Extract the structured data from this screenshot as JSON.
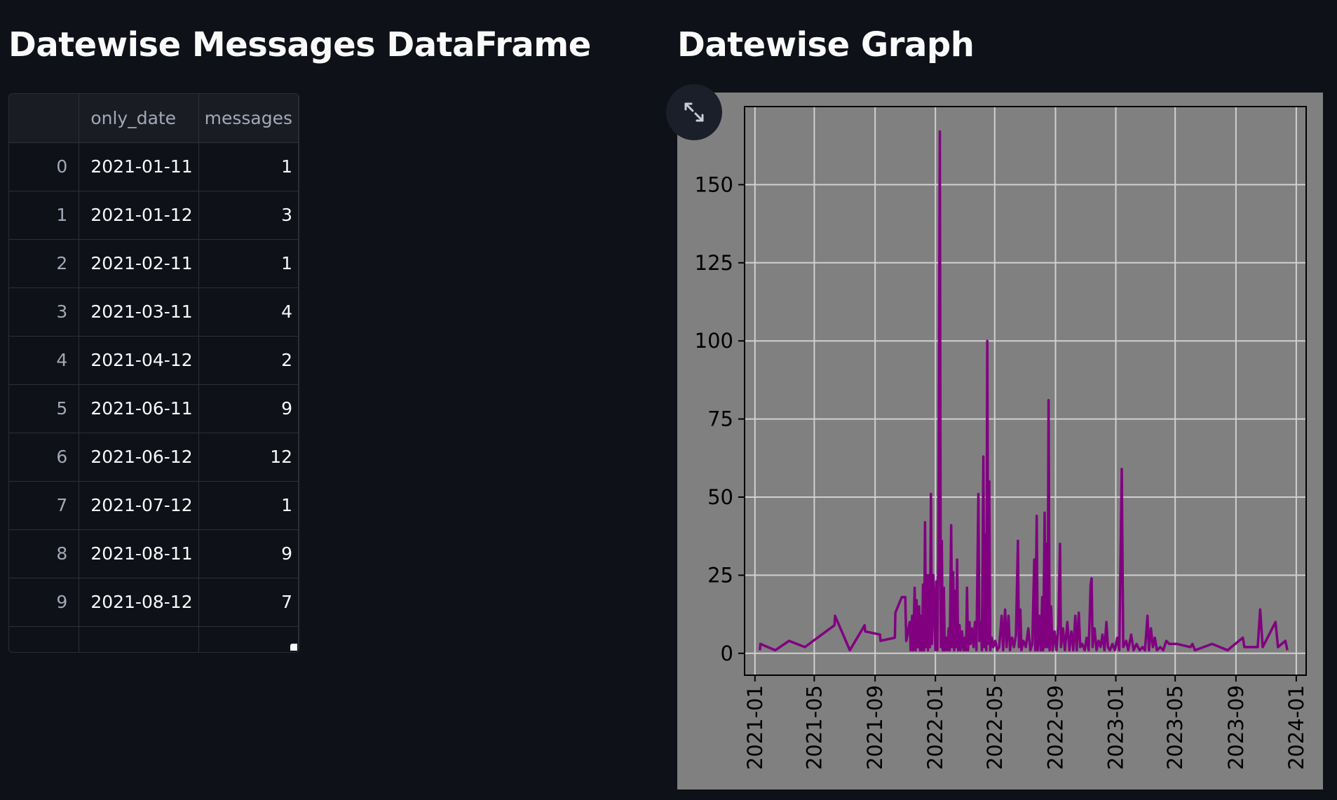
{
  "left_panel": {
    "title": "Datewise Messages DataFrame",
    "dataframe": {
      "columns": [
        "",
        "only_date",
        "messages"
      ],
      "rows": [
        {
          "index": "0",
          "only_date": "2021-01-11",
          "messages": "1"
        },
        {
          "index": "1",
          "only_date": "2021-01-12",
          "messages": "3"
        },
        {
          "index": "2",
          "only_date": "2021-02-11",
          "messages": "1"
        },
        {
          "index": "3",
          "only_date": "2021-03-11",
          "messages": "4"
        },
        {
          "index": "4",
          "only_date": "2021-04-12",
          "messages": "2"
        },
        {
          "index": "5",
          "only_date": "2021-06-11",
          "messages": "9"
        },
        {
          "index": "6",
          "only_date": "2021-06-12",
          "messages": "12"
        },
        {
          "index": "7",
          "only_date": "2021-07-12",
          "messages": "1"
        },
        {
          "index": "8",
          "only_date": "2021-08-11",
          "messages": "9"
        },
        {
          "index": "9",
          "only_date": "2021-08-12",
          "messages": "7"
        }
      ]
    }
  },
  "right_panel": {
    "title": "Datewise Graph",
    "expand_icon": "expand-arrows-icon"
  },
  "colors": {
    "background": "#0e1117",
    "plot_background": "#808080",
    "line": "#800080",
    "grid": "#d0d0d0"
  },
  "chart_data": {
    "type": "line",
    "title": "",
    "xlabel": "",
    "ylabel": "",
    "x_ticks": [
      "2021-01",
      "2021-05",
      "2021-09",
      "2022-01",
      "2022-05",
      "2022-09",
      "2023-01",
      "2023-05",
      "2023-09",
      "2024-01"
    ],
    "y_ticks": [
      "0",
      "25",
      "50",
      "75",
      "100",
      "125",
      "150"
    ],
    "xlim": [
      "2020-12-11",
      "2024-01-21"
    ],
    "ylim": [
      -7,
      175
    ],
    "grid": true,
    "line_color": "#800080",
    "series": [
      {
        "points": [
          [
            "2021-01-11",
            1
          ],
          [
            "2021-01-12",
            3
          ],
          [
            "2021-02-11",
            1
          ],
          [
            "2021-03-11",
            4
          ],
          [
            "2021-04-12",
            2
          ],
          [
            "2021-06-11",
            9
          ],
          [
            "2021-06-12",
            12
          ],
          [
            "2021-07-12",
            1
          ],
          [
            "2021-08-11",
            9
          ],
          [
            "2021-08-12",
            7
          ],
          [
            "2021-09-11",
            6
          ],
          [
            "2021-09-12",
            4
          ],
          [
            "2021-10-11",
            5
          ],
          [
            "2021-10-12",
            13
          ],
          [
            "2021-10-25",
            18
          ],
          [
            "2021-11-01",
            18
          ],
          [
            "2021-11-03",
            4
          ],
          [
            "2021-11-10",
            10
          ],
          [
            "2021-11-12",
            1
          ],
          [
            "2021-11-15",
            12
          ],
          [
            "2021-11-17",
            1
          ],
          [
            "2021-11-20",
            21
          ],
          [
            "2021-11-22",
            1
          ],
          [
            "2021-11-24",
            17
          ],
          [
            "2021-11-27",
            2
          ],
          [
            "2021-11-29",
            15
          ],
          [
            "2021-12-01",
            1
          ],
          [
            "2021-12-03",
            12
          ],
          [
            "2021-12-05",
            1
          ],
          [
            "2021-12-07",
            22
          ],
          [
            "2021-12-09",
            1
          ],
          [
            "2021-12-11",
            42
          ],
          [
            "2021-12-13",
            2
          ],
          [
            "2021-12-15",
            25
          ],
          [
            "2021-12-17",
            1
          ],
          [
            "2021-12-19",
            25
          ],
          [
            "2021-12-21",
            2
          ],
          [
            "2021-12-23",
            51
          ],
          [
            "2021-12-25",
            3
          ],
          [
            "2021-12-28",
            25
          ],
          [
            "2022-01-01",
            1
          ],
          [
            "2022-01-03",
            23
          ],
          [
            "2022-01-05",
            1
          ],
          [
            "2022-01-07",
            30
          ],
          [
            "2022-01-10",
            167
          ],
          [
            "2022-01-12",
            2
          ],
          [
            "2022-01-14",
            36
          ],
          [
            "2022-01-16",
            1
          ],
          [
            "2022-01-18",
            21
          ],
          [
            "2022-01-20",
            1
          ],
          [
            "2022-01-23",
            5
          ],
          [
            "2022-01-25",
            1
          ],
          [
            "2022-01-28",
            8
          ],
          [
            "2022-01-30",
            1
          ],
          [
            "2022-02-02",
            41
          ],
          [
            "2022-02-04",
            2
          ],
          [
            "2022-02-06",
            26
          ],
          [
            "2022-02-08",
            1
          ],
          [
            "2022-02-10",
            20
          ],
          [
            "2022-02-12",
            2
          ],
          [
            "2022-02-14",
            30
          ],
          [
            "2022-02-16",
            1
          ],
          [
            "2022-02-19",
            9
          ],
          [
            "2022-02-21",
            1
          ],
          [
            "2022-02-24",
            7
          ],
          [
            "2022-02-27",
            1
          ],
          [
            "2022-03-02",
            5
          ],
          [
            "2022-03-04",
            1
          ],
          [
            "2022-03-06",
            21
          ],
          [
            "2022-03-08",
            1
          ],
          [
            "2022-03-11",
            10
          ],
          [
            "2022-03-13",
            3
          ],
          [
            "2022-03-16",
            8
          ],
          [
            "2022-03-19",
            2
          ],
          [
            "2022-03-22",
            10
          ],
          [
            "2022-03-25",
            1
          ],
          [
            "2022-03-29",
            51
          ],
          [
            "2022-03-31",
            4
          ],
          [
            "2022-04-03",
            10
          ],
          [
            "2022-04-05",
            1
          ],
          [
            "2022-04-08",
            63
          ],
          [
            "2022-04-10",
            2
          ],
          [
            "2022-04-12",
            38
          ],
          [
            "2022-04-14",
            1
          ],
          [
            "2022-04-16",
            100
          ],
          [
            "2022-04-18",
            3
          ],
          [
            "2022-04-20",
            55
          ],
          [
            "2022-04-22",
            1
          ],
          [
            "2022-04-25",
            5
          ],
          [
            "2022-04-28",
            2
          ],
          [
            "2022-05-02",
            4
          ],
          [
            "2022-05-06",
            1
          ],
          [
            "2022-05-10",
            2
          ],
          [
            "2022-05-15",
            12
          ],
          [
            "2022-05-18",
            1
          ],
          [
            "2022-05-22",
            14
          ],
          [
            "2022-05-25",
            2
          ],
          [
            "2022-05-29",
            12
          ],
          [
            "2022-06-01",
            1
          ],
          [
            "2022-06-05",
            5
          ],
          [
            "2022-06-09",
            2
          ],
          [
            "2022-06-13",
            6
          ],
          [
            "2022-06-17",
            36
          ],
          [
            "2022-06-19",
            2
          ],
          [
            "2022-06-22",
            14
          ],
          [
            "2022-06-24",
            1
          ],
          [
            "2022-06-28",
            4
          ],
          [
            "2022-07-03",
            2
          ],
          [
            "2022-07-08",
            8
          ],
          [
            "2022-07-12",
            1
          ],
          [
            "2022-07-16",
            3
          ],
          [
            "2022-07-20",
            30
          ],
          [
            "2022-07-22",
            1
          ],
          [
            "2022-07-25",
            44
          ],
          [
            "2022-07-27",
            1
          ],
          [
            "2022-07-30",
            12
          ],
          [
            "2022-08-02",
            1
          ],
          [
            "2022-08-05",
            18
          ],
          [
            "2022-08-07",
            1
          ],
          [
            "2022-08-10",
            45
          ],
          [
            "2022-08-12",
            2
          ],
          [
            "2022-08-14",
            35
          ],
          [
            "2022-08-16",
            2
          ],
          [
            "2022-08-18",
            81
          ],
          [
            "2022-08-20",
            1
          ],
          [
            "2022-08-23",
            15
          ],
          [
            "2022-08-26",
            1
          ],
          [
            "2022-08-30",
            7
          ],
          [
            "2022-09-03",
            1
          ],
          [
            "2022-09-07",
            9
          ],
          [
            "2022-09-10",
            35
          ],
          [
            "2022-09-12",
            2
          ],
          [
            "2022-09-16",
            8
          ],
          [
            "2022-09-20",
            1
          ],
          [
            "2022-09-25",
            10
          ],
          [
            "2022-09-29",
            1
          ],
          [
            "2022-10-03",
            7
          ],
          [
            "2022-10-07",
            1
          ],
          [
            "2022-10-11",
            12
          ],
          [
            "2022-10-14",
            1
          ],
          [
            "2022-10-18",
            13
          ],
          [
            "2022-10-21",
            2
          ],
          [
            "2022-10-25",
            3
          ],
          [
            "2022-10-30",
            1
          ],
          [
            "2022-11-03",
            5
          ],
          [
            "2022-11-07",
            1
          ],
          [
            "2022-11-11",
            22
          ],
          [
            "2022-11-13",
            24
          ],
          [
            "2022-11-15",
            2
          ],
          [
            "2022-11-19",
            8
          ],
          [
            "2022-11-23",
            1
          ],
          [
            "2022-11-27",
            4
          ],
          [
            "2022-12-01",
            2
          ],
          [
            "2022-12-05",
            6
          ],
          [
            "2022-12-09",
            1
          ],
          [
            "2022-12-13",
            10
          ],
          [
            "2022-12-16",
            2
          ],
          [
            "2022-12-20",
            1
          ],
          [
            "2022-12-25",
            3
          ],
          [
            "2022-12-30",
            1
          ],
          [
            "2023-01-04",
            5
          ],
          [
            "2023-01-08",
            1
          ],
          [
            "2023-01-13",
            59
          ],
          [
            "2023-01-16",
            2
          ],
          [
            "2023-01-22",
            4
          ],
          [
            "2023-01-26",
            1
          ],
          [
            "2023-02-01",
            6
          ],
          [
            "2023-02-06",
            1
          ],
          [
            "2023-02-12",
            3
          ],
          [
            "2023-02-18",
            1
          ],
          [
            "2023-02-24",
            2
          ],
          [
            "2023-03-01",
            1
          ],
          [
            "2023-03-06",
            12
          ],
          [
            "2023-03-09",
            1
          ],
          [
            "2023-03-13",
            8
          ],
          [
            "2023-03-17",
            2
          ],
          [
            "2023-03-21",
            5
          ],
          [
            "2023-03-25",
            1
          ],
          [
            "2023-04-01",
            2
          ],
          [
            "2023-04-07",
            1
          ],
          [
            "2023-04-13",
            4
          ],
          [
            "2023-04-19",
            3
          ],
          [
            "2023-05-05",
            3
          ],
          [
            "2023-06-01",
            2
          ],
          [
            "2023-06-05",
            3
          ],
          [
            "2023-06-10",
            1
          ],
          [
            "2023-07-15",
            3
          ],
          [
            "2023-08-15",
            1
          ],
          [
            "2023-09-15",
            5
          ],
          [
            "2023-09-18",
            2
          ],
          [
            "2023-10-15",
            2
          ],
          [
            "2023-10-20",
            14
          ],
          [
            "2023-10-25",
            2
          ],
          [
            "2023-11-20",
            10
          ],
          [
            "2023-11-25",
            2
          ],
          [
            "2023-12-10",
            4
          ],
          [
            "2023-12-14",
            1
          ]
        ]
      }
    ]
  }
}
